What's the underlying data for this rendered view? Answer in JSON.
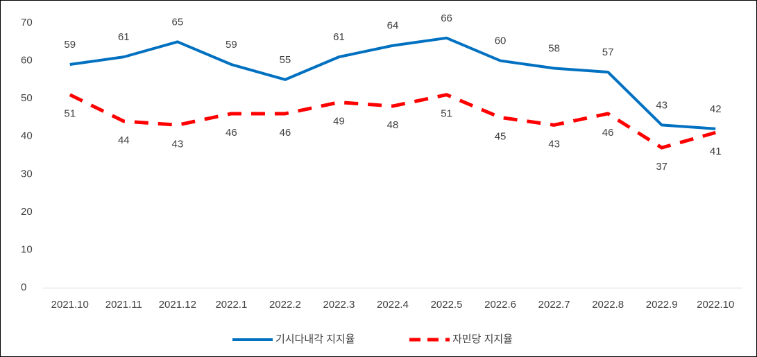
{
  "chart_data": {
    "type": "line",
    "categories": [
      "2021.10",
      "2021.11",
      "2021.12",
      "2022.1",
      "2022.2",
      "2022.3",
      "2022.4",
      "2022.5",
      "2022.6",
      "2022.7",
      "2022.8",
      "2022.9",
      "2022.10"
    ],
    "series": [
      {
        "name": "기시다내각 지지율",
        "color": "#0070c0",
        "dashed": false,
        "values": [
          59,
          61,
          65,
          59,
          55,
          61,
          64,
          66,
          60,
          58,
          57,
          43,
          42
        ]
      },
      {
        "name": "자민당 지지율",
        "color": "#ff0000",
        "dashed": true,
        "values": [
          51,
          44,
          43,
          46,
          46,
          49,
          48,
          51,
          45,
          43,
          46,
          37,
          41
        ]
      }
    ],
    "ylim": [
      0,
      70
    ],
    "yticks": [
      0,
      10,
      20,
      30,
      40,
      50,
      60,
      70
    ],
    "grid": false,
    "legend": "bottom"
  }
}
